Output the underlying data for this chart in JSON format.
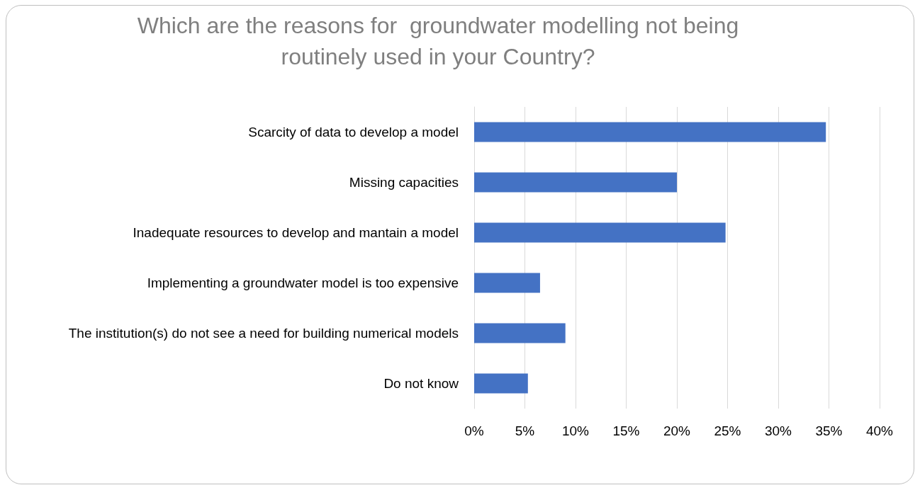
{
  "chart_data": {
    "type": "bar",
    "orientation": "horizontal",
    "title": "Which are the reasons for  groundwater modelling not being routinely used in your Country?",
    "categories": [
      "Scarcity of data to develop a model",
      "Missing capacities",
      "Inadequate resources to develop and mantain a model",
      "Implementing a groundwater model is too expensive",
      "The institution(s) do not see a need for building numerical models",
      "Do not know"
    ],
    "values": [
      34.7,
      20.0,
      24.8,
      6.5,
      9.0,
      5.3
    ],
    "color": "#4472c4",
    "xlim": [
      0,
      40
    ],
    "xticks": [
      {
        "value": 0,
        "label": "0%"
      },
      {
        "value": 5,
        "label": "5%"
      },
      {
        "value": 10,
        "label": "10%"
      },
      {
        "value": 15,
        "label": "15%"
      },
      {
        "value": 20,
        "label": "20%"
      },
      {
        "value": 25,
        "label": "25%"
      },
      {
        "value": 30,
        "label": "30%"
      },
      {
        "value": 35,
        "label": "35%"
      },
      {
        "value": 40,
        "label": "40%"
      }
    ],
    "grid": "x"
  }
}
